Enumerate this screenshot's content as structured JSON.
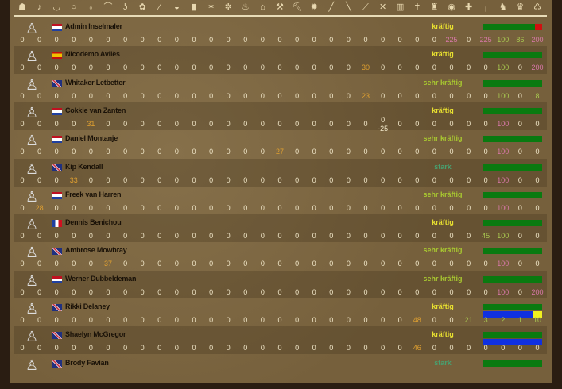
{
  "header_icons": [
    "helmet",
    "boot",
    "bowl",
    "ring",
    "pouch",
    "bow",
    "hook",
    "cloth",
    "herb",
    "bread",
    "barrel",
    "hide",
    "gear",
    "meat",
    "house",
    "hammer",
    "pickaxe",
    "fire",
    "torch",
    "club",
    "sword",
    "crossed-swords",
    "shield",
    "cross",
    "potion",
    "coin",
    "red-cross",
    "needle",
    "fur",
    "jar",
    "basket"
  ],
  "colors": {
    "w": "#f0e6c8",
    "o": "#e0a030",
    "p": "#d878a8",
    "g": "#a8c850",
    "kraeftig": "#e8e030",
    "sehr_kraeftig": "#a8c830",
    "stark": "#48a070",
    "bar_green": "#0a7a10",
    "bar_blue": "#1030e0",
    "bar_red": "#d01010",
    "bar_yellow": "#f0f020"
  },
  "crew": [
    {
      "name": "Admin Inselmaler",
      "flag": "nl",
      "status": "kräftig",
      "st": "kraeftig",
      "bar": {
        "end": "red"
      },
      "cells": {
        "25": [
          "225",
          "p"
        ],
        "27": [
          "225",
          "p"
        ],
        "28": [
          "100",
          "g"
        ],
        "29": [
          "86",
          "g"
        ],
        "30": [
          "200",
          "p"
        ]
      }
    },
    {
      "name": "Nicodemo Avilès",
      "flag": "es",
      "status": "kräftig",
      "st": "kraeftig",
      "bar": {},
      "cells": {
        "20": [
          "30",
          "o"
        ],
        "28": [
          "100",
          "g"
        ],
        "30": [
          "200",
          "p"
        ]
      }
    },
    {
      "name": "Whitaker Letbetter",
      "flag": "gb",
      "status": "sehr kräftig",
      "st": "sehr_kraeftig",
      "bar": {},
      "cells": {
        "20": [
          "23",
          "o"
        ],
        "28": [
          "100",
          "g"
        ],
        "30": [
          "8",
          "g"
        ]
      }
    },
    {
      "name": "Cokkie van Zanten",
      "flag": "nl",
      "status": "kräftig",
      "st": "kraeftig",
      "bar": {},
      "cells": {
        "4": [
          "31",
          "o"
        ],
        "28": [
          "100",
          "p"
        ]
      },
      "extra": {
        "21": "-25"
      }
    },
    {
      "name": "Daniel Montanje",
      "flag": "nl",
      "status": "sehr kräftig",
      "st": "sehr_kraeftig",
      "bar": {},
      "cells": {
        "15": [
          "27",
          "o"
        ],
        "28": [
          "100",
          "p"
        ]
      }
    },
    {
      "name": "Kip Kendall",
      "flag": "gb",
      "status": "stark",
      "st": "stark",
      "bar": {},
      "cells": {
        "3": [
          "33",
          "o"
        ],
        "28": [
          "100",
          "p"
        ]
      }
    },
    {
      "name": "Freek van Harren",
      "flag": "nl",
      "status": "sehr kräftig",
      "st": "sehr_kraeftig",
      "bar": {},
      "cells": {
        "1": [
          "28",
          "o"
        ],
        "28": [
          "100",
          "p"
        ]
      }
    },
    {
      "name": "Dennis Benichou",
      "flag": "fr",
      "status": "kräftig",
      "st": "kraeftig",
      "bar": {},
      "cells": {
        "27": [
          "45",
          "g"
        ],
        "28": [
          "100",
          "g"
        ]
      }
    },
    {
      "name": "Ambrose Mowbray",
      "flag": "gb",
      "status": "sehr kräftig",
      "st": "sehr_kraeftig",
      "bar": {},
      "cells": {
        "5": [
          "37",
          "o"
        ],
        "28": [
          "100",
          "p"
        ]
      }
    },
    {
      "name": "Werner Dubbeldeman",
      "flag": "nl",
      "status": "sehr kräftig",
      "st": "sehr_kraeftig",
      "bar": {},
      "cells": {
        "28": [
          "100",
          "p"
        ],
        "30": [
          "200",
          "p"
        ]
      }
    },
    {
      "name": "Rikki Delaney",
      "flag": "gb",
      "status": "kräftig",
      "st": "kraeftig",
      "bar": {
        "second": "blue",
        "second_end": "yellow"
      },
      "cells": {
        "23": [
          "48",
          "o"
        ],
        "26": [
          "21",
          "g"
        ],
        "27": [
          "3",
          "g"
        ],
        "28": [
          "2",
          "g"
        ],
        "29": [
          "1",
          "g"
        ],
        "30": [
          "10",
          "g"
        ]
      }
    },
    {
      "name": "Shaelyn McGregor",
      "flag": "gb",
      "status": "kräftig",
      "st": "kraeftig",
      "bar": {
        "second": "blue"
      },
      "cells": {
        "23": [
          "46",
          "o"
        ]
      }
    },
    {
      "name": "Brody Favian",
      "flag": "gb",
      "status": "stark",
      "st": "stark",
      "bar": {},
      "cells": {},
      "no_values": true
    }
  ]
}
